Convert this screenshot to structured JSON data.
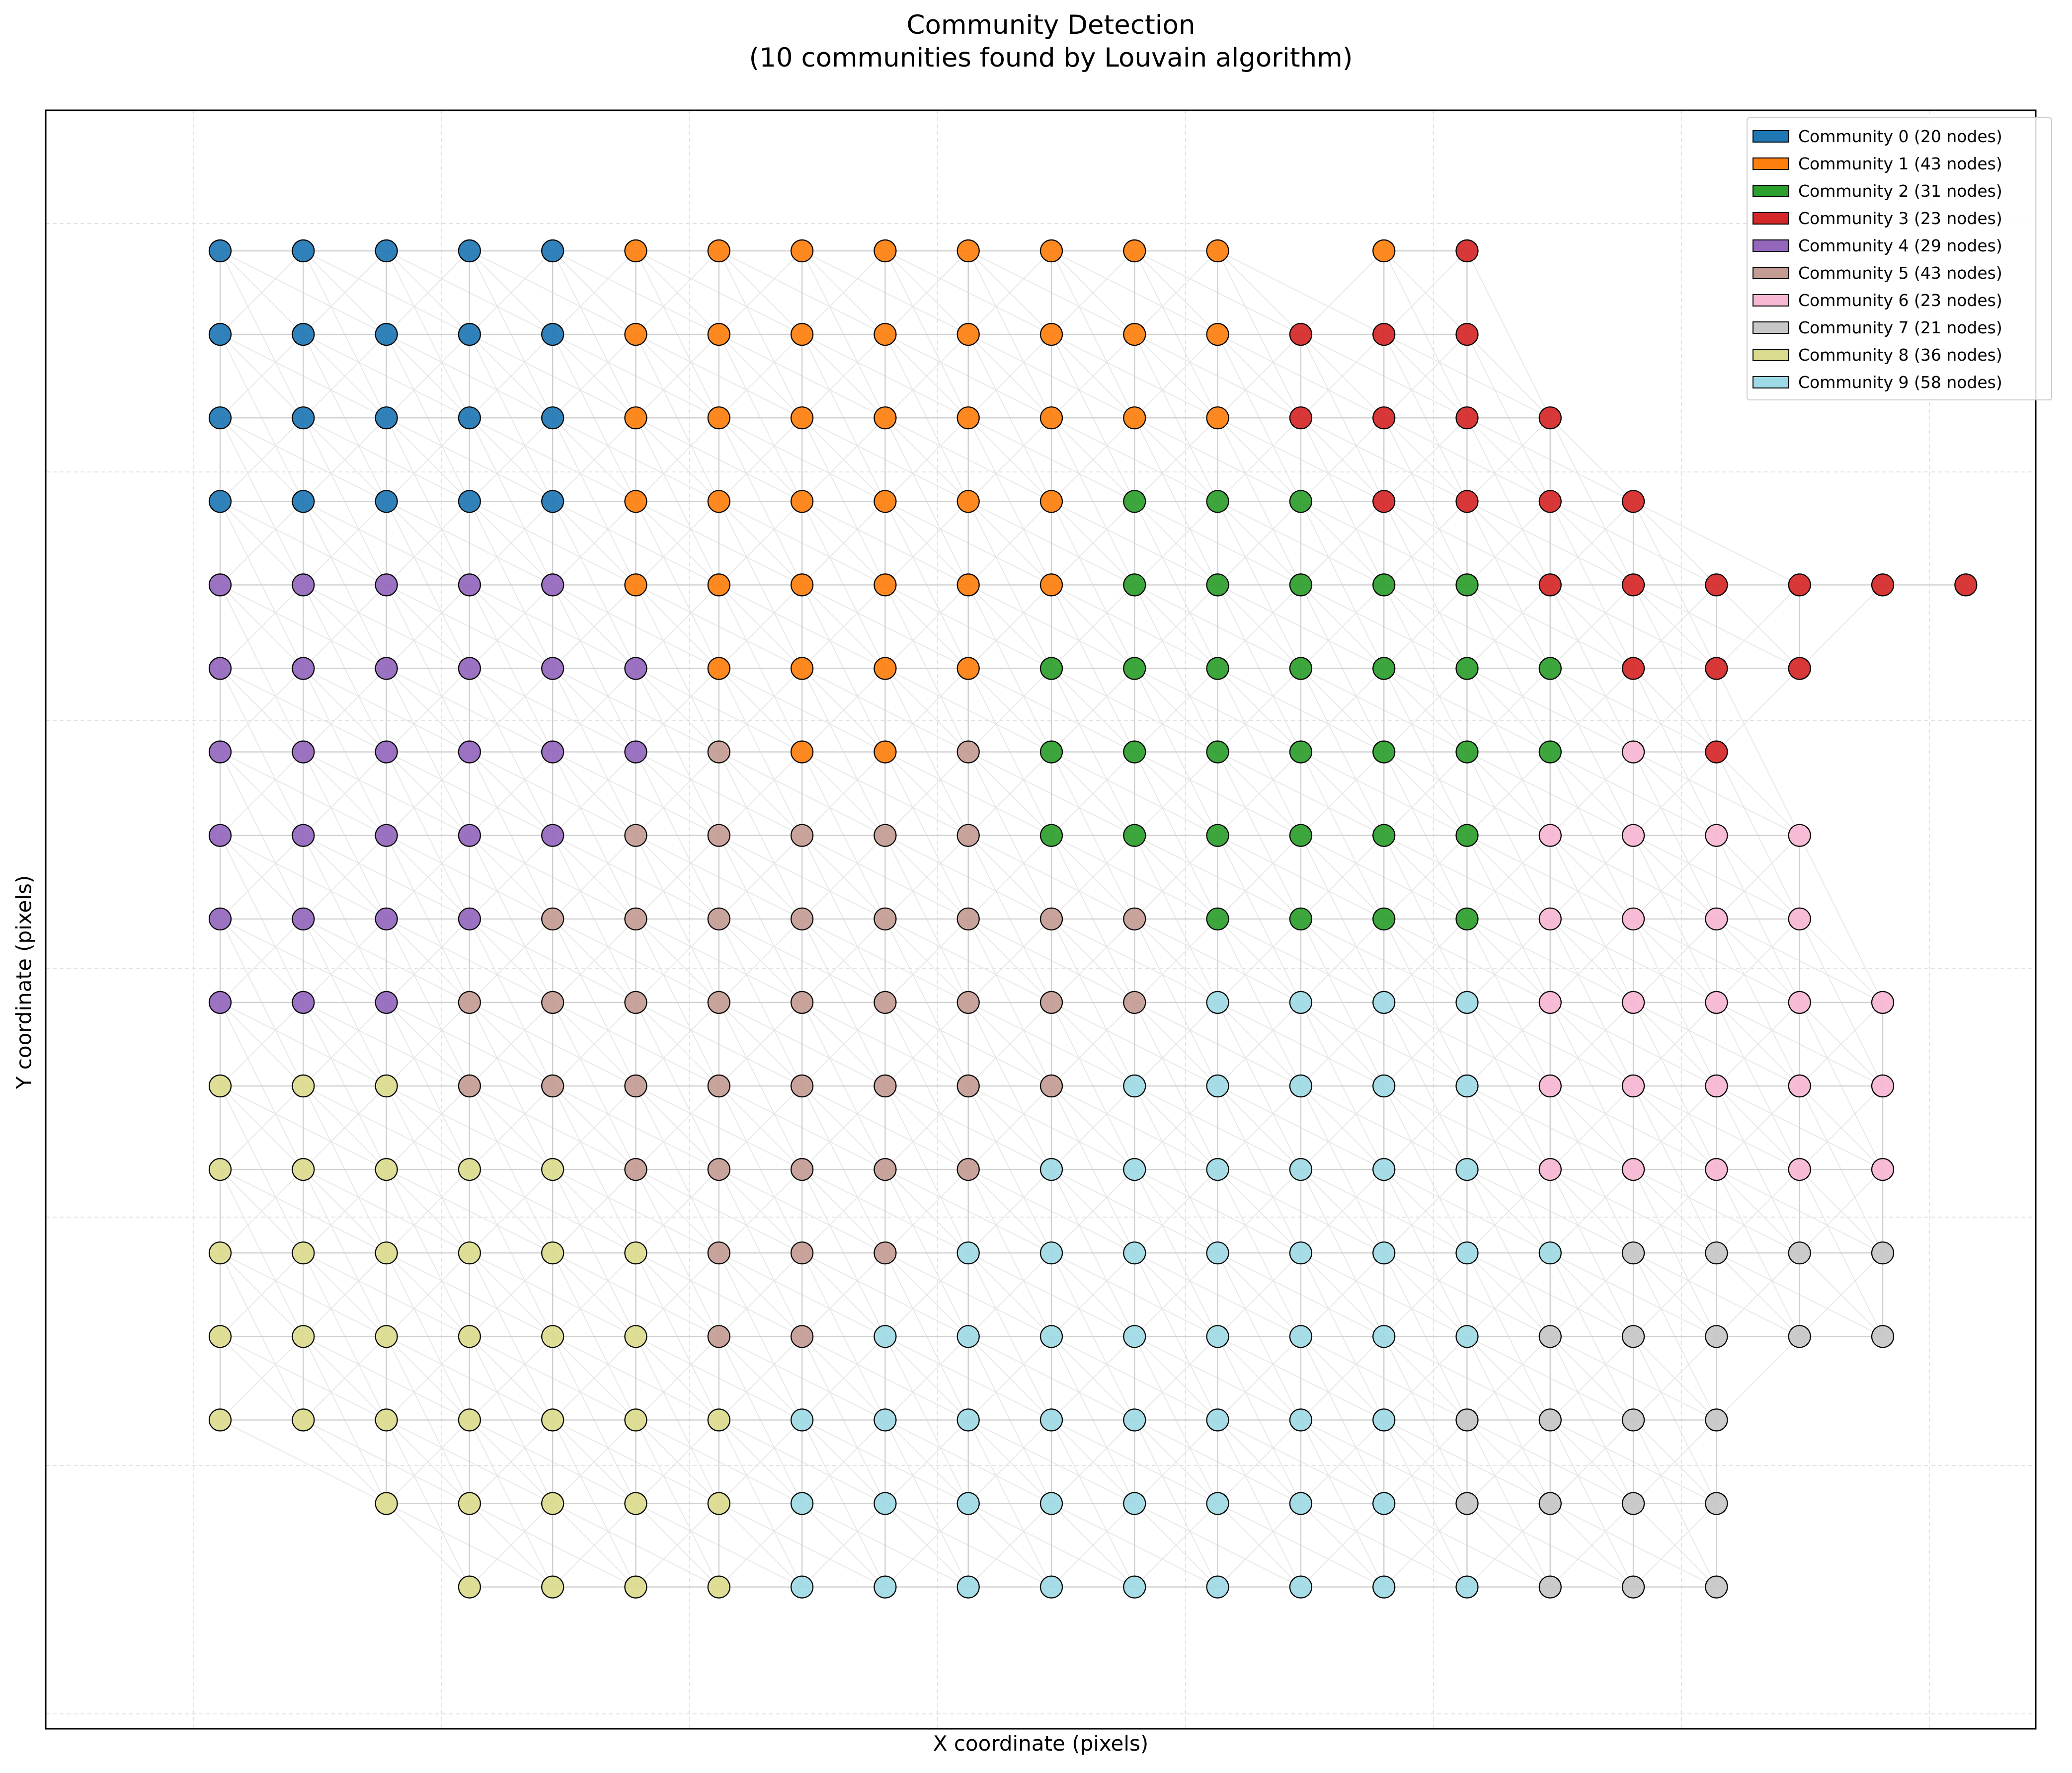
{
  "chart_data": {
    "type": "scatter",
    "title": "Community Detection\n(10 communities found by Louvain algorithm)",
    "xlabel": "X coordinate (pixels)",
    "ylabel": "Y coordinate (pixels)",
    "grid": true,
    "legend_position": "top-right",
    "grid_columns": [
      0,
      1,
      2,
      3,
      4,
      5,
      6,
      7,
      8,
      9,
      10,
      11,
      12,
      13,
      14,
      15,
      16,
      17,
      18,
      19,
      20
    ],
    "grid_rows": [
      0,
      1,
      2,
      3,
      4,
      5,
      6,
      7,
      8,
      9,
      10,
      11,
      12,
      13,
      14,
      15,
      16
    ],
    "communities": [
      {
        "id": 0,
        "label": "Community 0 (20 nodes)",
        "color": "#1f77b4"
      },
      {
        "id": 1,
        "label": "Community 1 (43 nodes)",
        "color": "#ff7f0e"
      },
      {
        "id": 2,
        "label": "Community 2 (31 nodes)",
        "color": "#2ca02c"
      },
      {
        "id": 3,
        "label": "Community 3 (23 nodes)",
        "color": "#d62728"
      },
      {
        "id": 4,
        "label": "Community 4 (29 nodes)",
        "color": "#9467bd"
      },
      {
        "id": 5,
        "label": "Community 5 (43 nodes)",
        "color": "#c49c94"
      },
      {
        "id": 6,
        "label": "Community 6 (23 nodes)",
        "color": "#f7b6d2"
      },
      {
        "id": 7,
        "label": "Community 7 (21 nodes)",
        "color": "#c7c7c7"
      },
      {
        "id": 8,
        "label": "Community 8 (36 nodes)",
        "color": "#dbdb8d"
      },
      {
        "id": 9,
        "label": "Community 9 (58 nodes)",
        "color": "#9edae5"
      }
    ],
    "node_rows": [
      "0000011111111.13",
      "0000011111111333",
      "00000111111113333",
      "000001111112223333",
      "4444411111122222333333",
      "44444411112222222333",
      "4444445115222222263",
      "44444555552222226666",
      "44445555555522226666",
      "444555555555999966666",
      "888555555559999966666",
      "888885555599999966666",
      "888888555999999997777",
      "888888559999999977777",
      "8888888999999997777",
      "..88888999999997777",
      "...8888999999999777"
    ]
  }
}
